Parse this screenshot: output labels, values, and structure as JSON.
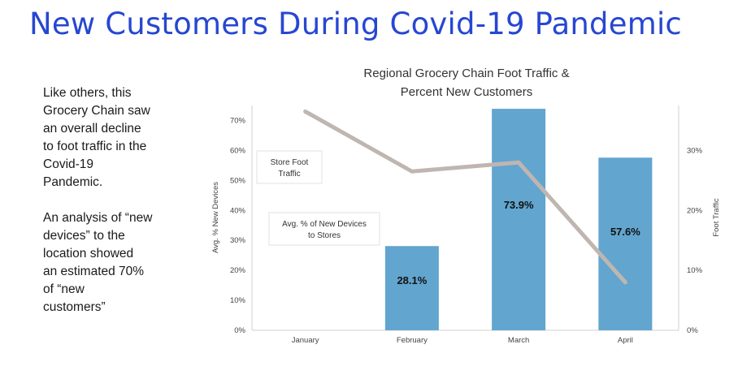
{
  "slide": {
    "title": "New Customers During Covid-19 Pandemic",
    "paragraphs": [
      "Like others, this\nGrocery Chain saw\nan overall decline\nto foot traffic in the\nCovid-19\nPandemic.",
      "An analysis of “new\ndevices” to the\nlocation showed\nan estimated 70%\nof “new\ncustomers”"
    ]
  },
  "chart_data": {
    "type": "bar",
    "title_lines": [
      "Regional Grocery Chain Foot Traffic &",
      "Percent New Customers"
    ],
    "categories": [
      "January",
      "February",
      "March",
      "April"
    ],
    "series": [
      {
        "name": "Avg. % of New Devices to Stores",
        "type": "bar",
        "axis": "left",
        "values": [
          null,
          28.1,
          73.9,
          57.6
        ],
        "data_labels": [
          "",
          "28.1%",
          "73.9%",
          "57.6%"
        ],
        "color": "#62a5cf"
      },
      {
        "name": "Store Foot Traffic",
        "type": "line",
        "axis": "right",
        "values": [
          36.5,
          26.5,
          28,
          8
        ],
        "color": "#bfb6b1"
      }
    ],
    "ylabel_left": "Avg. % New Devices",
    "ylabel_right": "Foot Traffic",
    "ylim_left": [
      0,
      75
    ],
    "ylim_right": [
      0,
      37.5
    ],
    "yticks_left": [
      "0%",
      "10%",
      "20%",
      "30%",
      "40%",
      "50%",
      "60%",
      "70%"
    ],
    "yticks_right": [
      "0%",
      "10%",
      "20%",
      "30%"
    ],
    "annotations": [
      {
        "lines": [
          "Store Foot",
          "Traffic"
        ],
        "target": "line"
      },
      {
        "lines": [
          "Avg. % of New Devices",
          "to Stores"
        ],
        "target": "bars"
      }
    ],
    "grid": false
  }
}
